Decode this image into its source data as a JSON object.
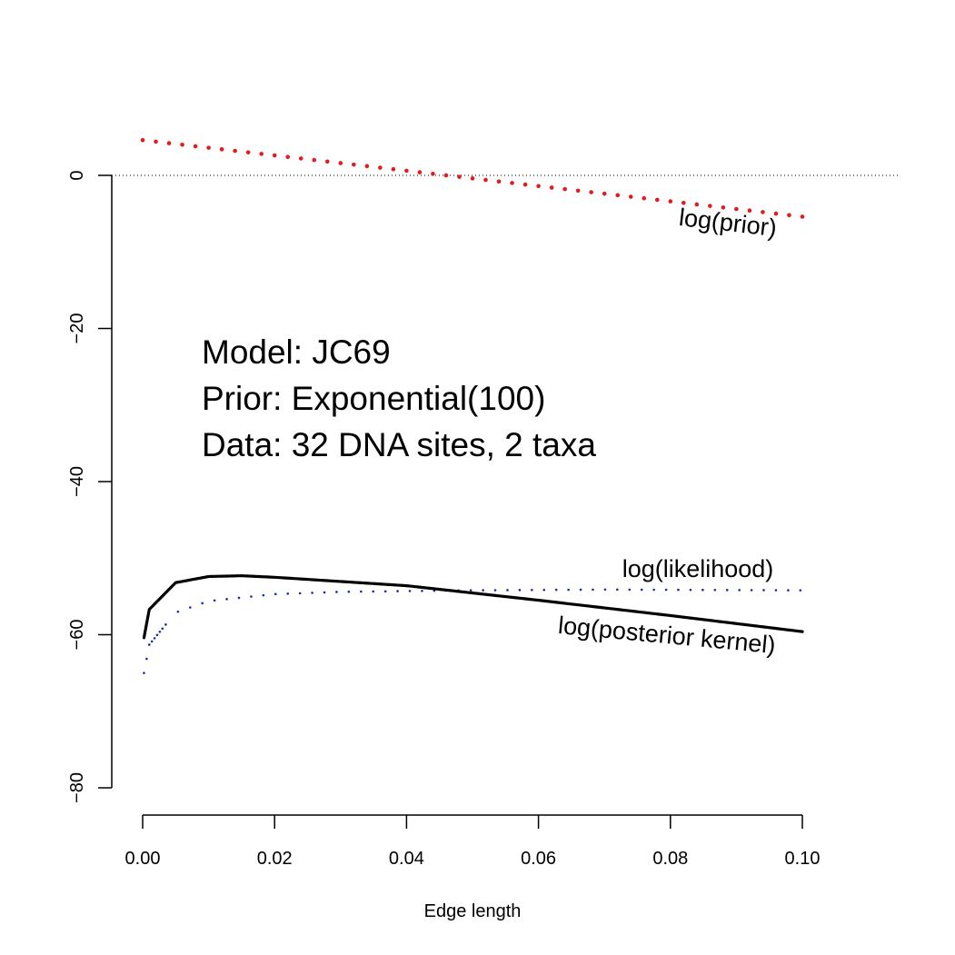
{
  "chart_data": {
    "type": "line",
    "xlabel": "Edge length",
    "ylabel": "",
    "xlim": [
      0.0,
      0.1
    ],
    "ylim": [
      -80,
      0
    ],
    "x_ticks": [
      "0.00",
      "0.02",
      "0.04",
      "0.06",
      "0.08",
      "0.10"
    ],
    "x_tick_values": [
      0.0,
      0.02,
      0.04,
      0.06,
      0.08,
      0.1
    ],
    "y_ticks": [
      "0",
      "−20",
      "−40",
      "−60",
      "−80"
    ],
    "y_tick_values": [
      0,
      -20,
      -40,
      -60,
      -80
    ],
    "reference_line": {
      "y": 0,
      "style": "dotted",
      "color": "#000000"
    },
    "annotation_lines": [
      "Model: JC69",
      "Prior: Exponential(100)",
      "Data: 32 DNA sites, 2 taxa"
    ],
    "series": [
      {
        "name": "log(prior)",
        "color": "#e41a1c",
        "style": "dotted",
        "formula": "log(100) - 100*x",
        "x": [
          0.0,
          0.05,
          0.1
        ],
        "y": [
          4.61,
          -0.39,
          -5.39
        ]
      },
      {
        "name": "log(likelihood)",
        "color": "#1a2fa0",
        "style": "dotted",
        "x": [
          0.0002,
          0.001,
          0.005,
          0.01,
          0.02,
          0.03,
          0.05,
          0.07,
          0.1
        ],
        "y": [
          -65.0,
          -61.3,
          -57.1,
          -55.6,
          -54.7,
          -54.4,
          -54.2,
          -54.1,
          -54.2
        ]
      },
      {
        "name": "log(posterior kernel)",
        "color": "#000000",
        "style": "solid",
        "x": [
          0.0002,
          0.001,
          0.005,
          0.01,
          0.015,
          0.02,
          0.04,
          0.06,
          0.08,
          0.1
        ],
        "y": [
          -60.4,
          -56.7,
          -53.2,
          -52.4,
          -52.3,
          -52.5,
          -53.6,
          -55.5,
          -57.5,
          -59.6
        ]
      }
    ]
  }
}
